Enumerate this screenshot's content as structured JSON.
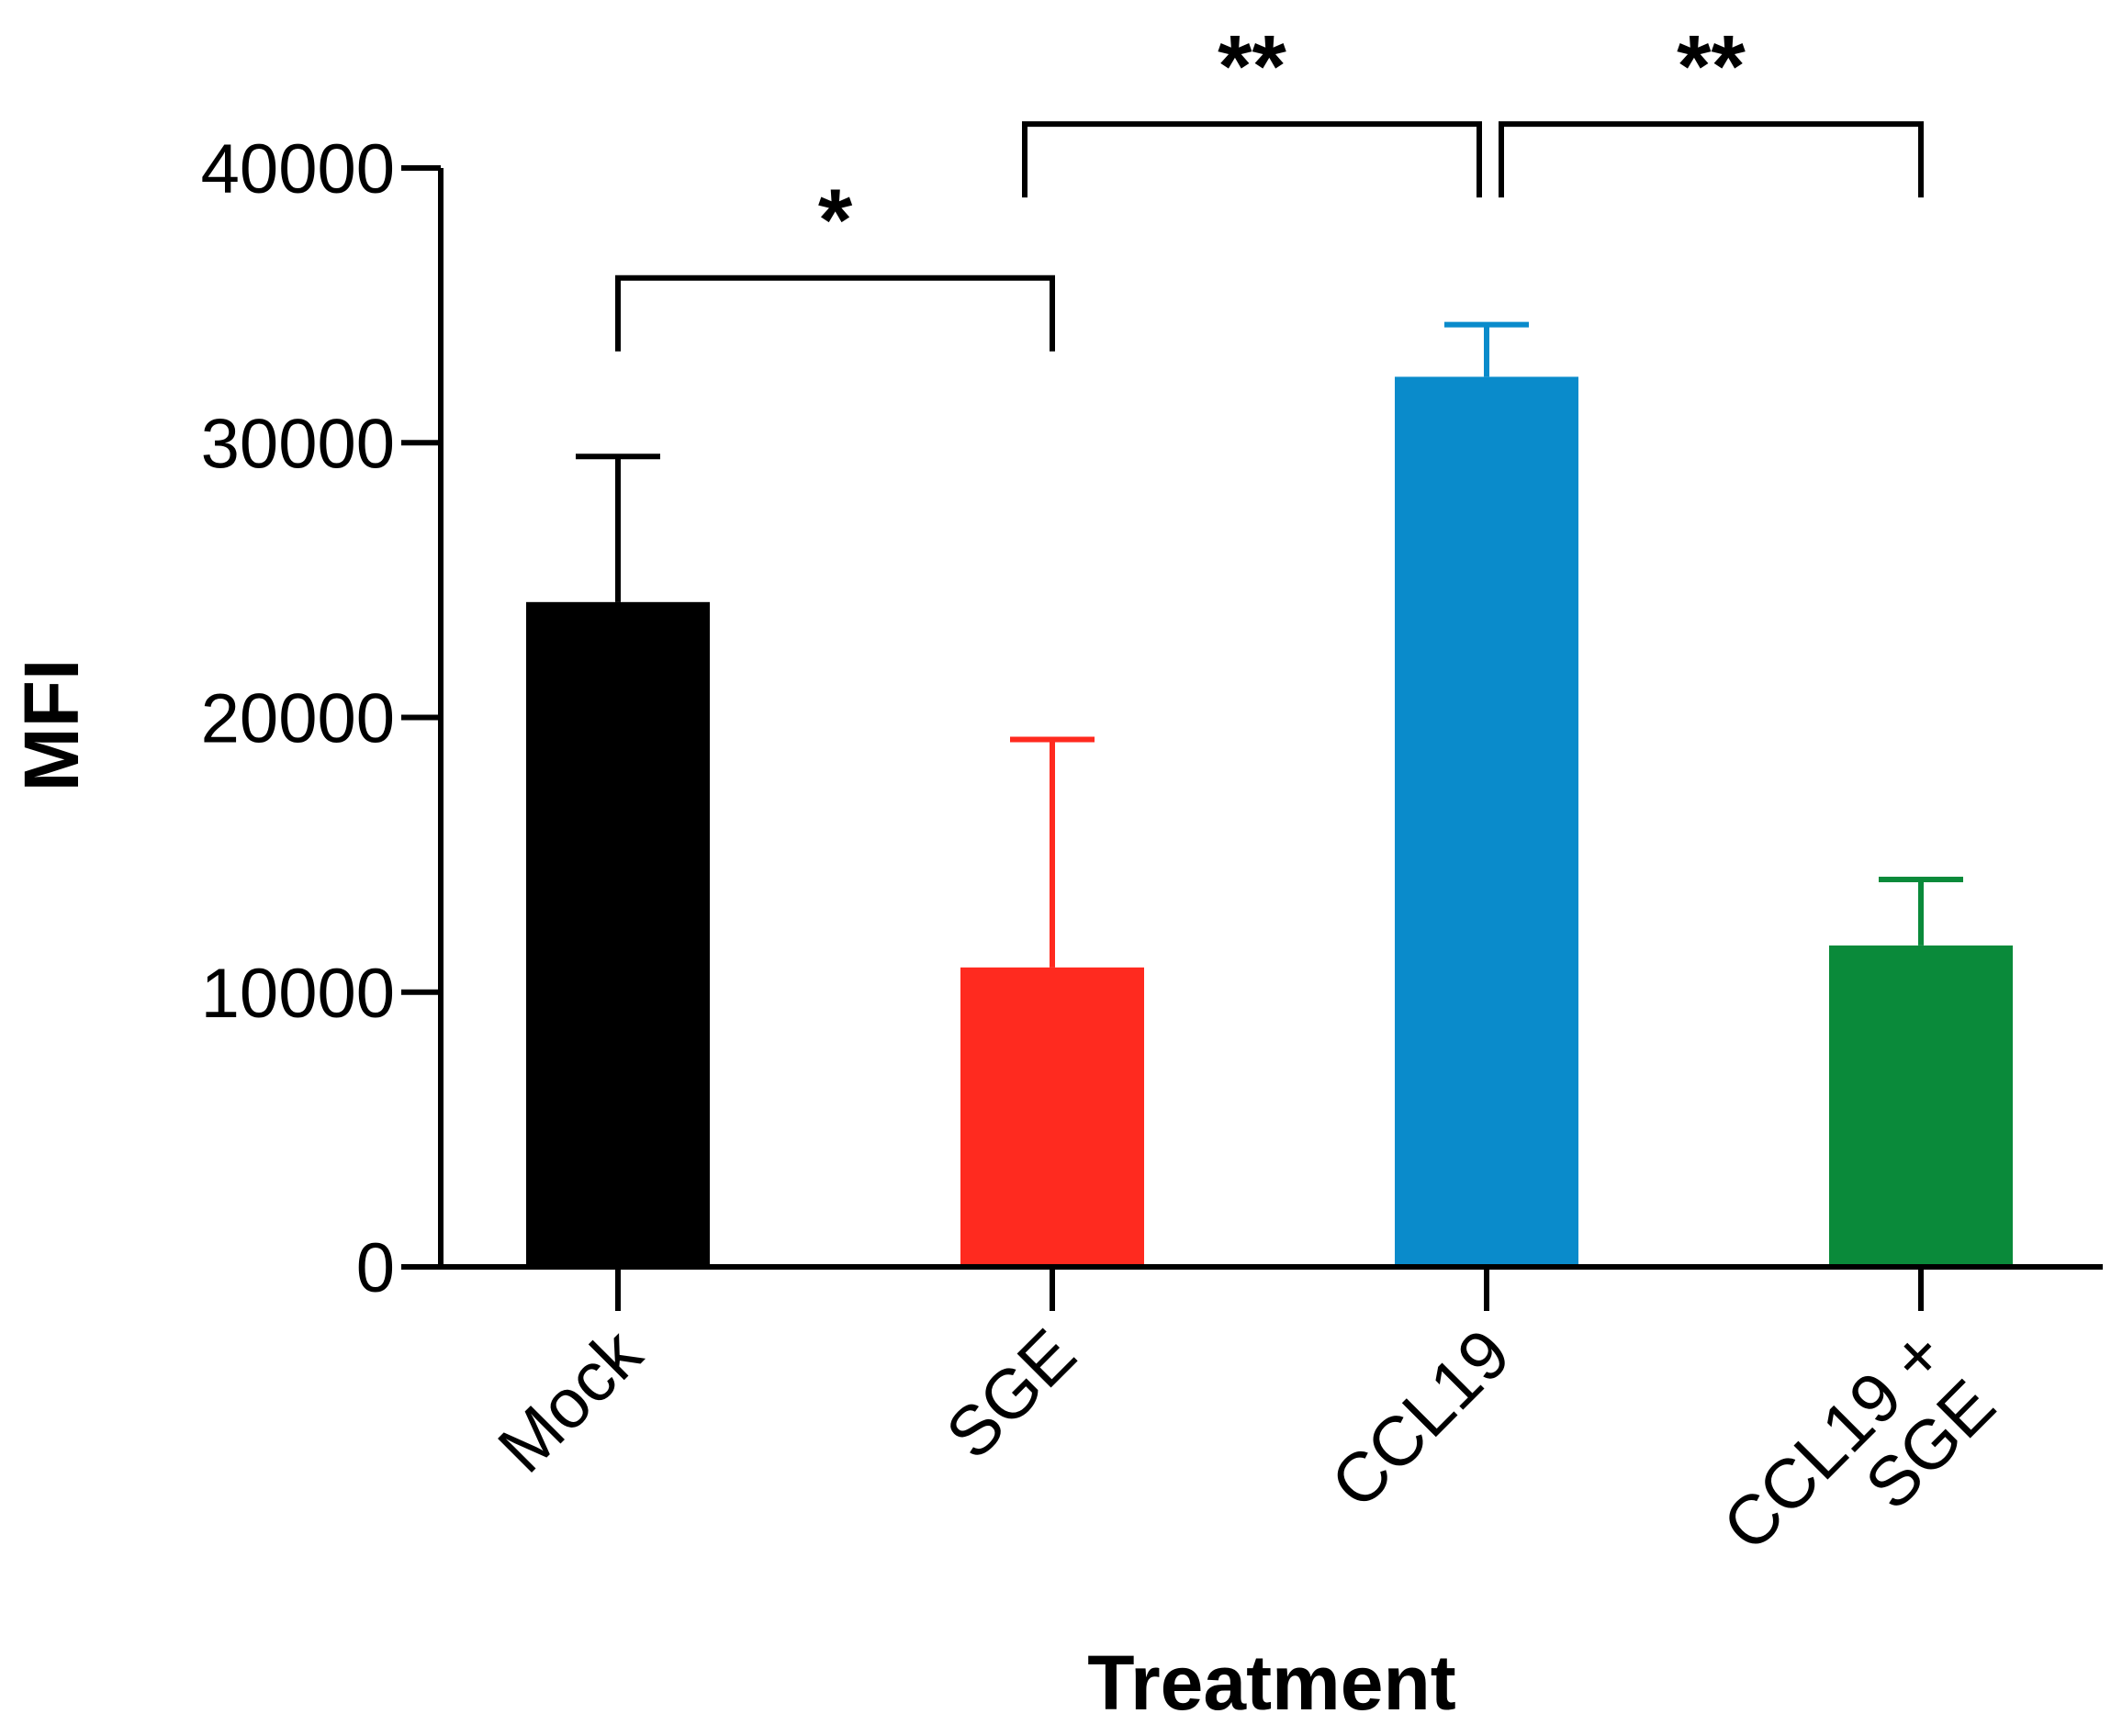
{
  "chart_data": {
    "type": "bar",
    "xlabel": "Treatment",
    "ylabel": "MFI",
    "ylim": [
      0,
      40000
    ],
    "yticks": [
      0,
      10000,
      20000,
      30000,
      40000
    ],
    "grid": false,
    "legend": "none",
    "categories": [
      [
        "Mock"
      ],
      [
        "SGE"
      ],
      [
        "CCL19"
      ],
      [
        "CCL19 +",
        "SGE"
      ]
    ],
    "values": [
      24200,
      10900,
      32400,
      11700
    ],
    "errors": [
      5300,
      8300,
      1900,
      2400
    ],
    "colors": [
      "#000000",
      "#ff2a1f",
      "#0a8bcb",
      "#0a8a3a"
    ],
    "significance": [
      {
        "from": 0,
        "to": 1,
        "label": "*",
        "level": 36000
      },
      {
        "from": 1,
        "to": 2,
        "label": "**",
        "level": 41600
      },
      {
        "from": 2,
        "to": 3,
        "label": "**",
        "level": 41600
      }
    ]
  }
}
